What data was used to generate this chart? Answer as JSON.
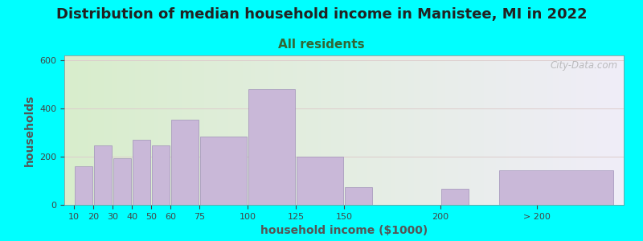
{
  "title": "Distribution of median household income in Manistee, MI in 2022",
  "subtitle": "All residents",
  "xlabel": "household income ($1000)",
  "ylabel": "households",
  "background_color": "#00FFFF",
  "plot_bg_gradient_left": "#d8edcc",
  "plot_bg_gradient_right": "#f0eef8",
  "bar_color": "#c9b8d8",
  "bar_edge_color": "#a090b8",
  "categories": [
    "10",
    "20",
    "30",
    "40",
    "50",
    "60",
    "75",
    "100",
    "125",
    "150",
    "200",
    "> 200"
  ],
  "values": [
    160,
    248,
    192,
    270,
    248,
    355,
    285,
    480,
    200,
    75,
    68,
    145
  ],
  "bar_lefts": [
    10,
    20,
    30,
    40,
    50,
    60,
    75,
    100,
    125,
    150,
    200,
    230
  ],
  "bar_rights": [
    20,
    30,
    40,
    50,
    60,
    75,
    100,
    125,
    150,
    165,
    215,
    290
  ],
  "tick_positions": [
    10,
    20,
    30,
    40,
    50,
    60,
    75,
    100,
    125,
    150,
    200,
    250
  ],
  "ylim": [
    0,
    620
  ],
  "yticks": [
    0,
    200,
    400,
    600
  ],
  "title_fontsize": 13,
  "subtitle_fontsize": 11,
  "axis_label_fontsize": 10,
  "tick_fontsize": 8,
  "title_color": "#222222",
  "subtitle_color": "#336633",
  "watermark_text": "City-Data.com",
  "watermark_color": "#aaaaaa",
  "grid_color": "#ddcccc",
  "xlabel_color": "#555555",
  "ylabel_color": "#555555"
}
